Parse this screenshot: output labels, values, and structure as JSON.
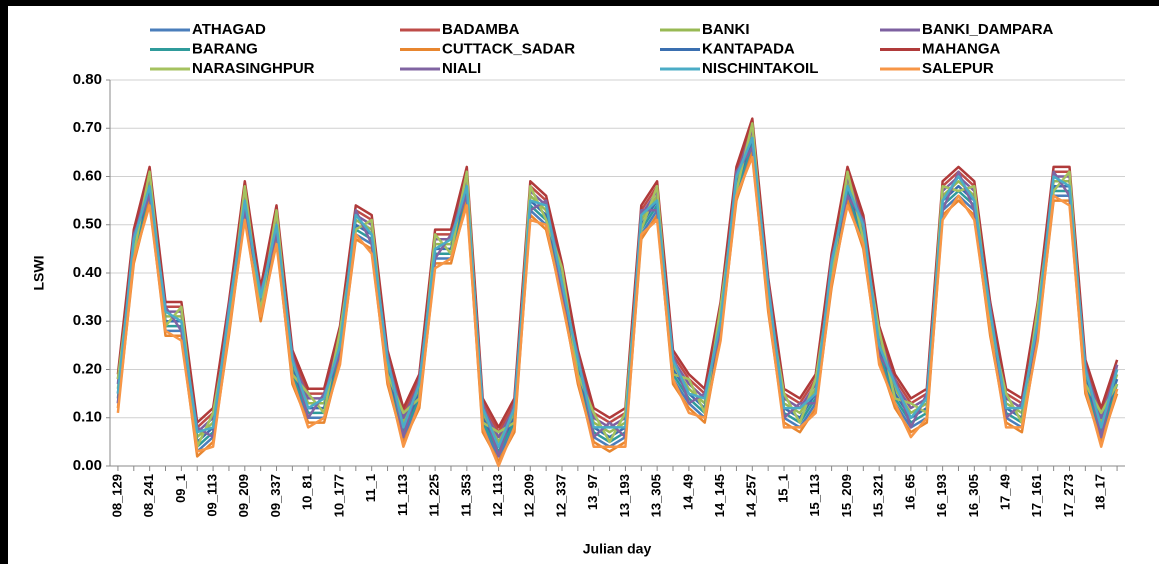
{
  "chart_data": {
    "type": "line",
    "ylabel": "LSWI",
    "xlabel": "Julian day",
    "categories": [
      "08_129",
      null,
      "08_241",
      null,
      "09_1",
      null,
      "09_113",
      null,
      "09_209",
      null,
      "09_337",
      null,
      "10_81",
      null,
      "10_177",
      null,
      "11_1",
      null,
      "11_113",
      null,
      "11_225",
      null,
      "11_353",
      null,
      "12_113",
      null,
      "12_209",
      null,
      "12_337",
      null,
      "13_97",
      null,
      "13_193",
      null,
      "13_305",
      null,
      "14_49",
      null,
      "14_145",
      null,
      "14_257",
      null,
      "15_1",
      null,
      "15_113",
      null,
      "15_209",
      null,
      "15_321",
      null,
      "16_65",
      null,
      "16_193",
      null,
      "16_305",
      null,
      "17_49",
      null,
      "17_161",
      null,
      "17_273",
      null,
      "18_17",
      null
    ],
    "ylim": [
      0,
      0.8
    ],
    "yticks": [
      {
        "value": 0,
        "label": "0.00"
      },
      {
        "value": 0.1,
        "label": "0.10"
      },
      {
        "value": 0.2,
        "label": "0.20"
      },
      {
        "value": 0.3,
        "label": "0.30"
      },
      {
        "value": 0.4,
        "label": "0.40"
      },
      {
        "value": 0.5,
        "label": "0.50"
      },
      {
        "value": 0.6,
        "label": "0.60"
      },
      {
        "value": 0.7,
        "label": "0.70"
      },
      {
        "value": 0.8,
        "label": "0.80"
      }
    ],
    "grid": true,
    "series": [
      {
        "name": "ATHAGAD",
        "color": "#4a7ebb",
        "values": [
          0.13,
          0.43,
          0.56,
          0.28,
          0.28,
          0.03,
          0.06,
          0.28,
          0.53,
          0.31,
          0.48,
          0.18,
          0.1,
          0.1,
          0.23,
          0.48,
          0.46,
          0.18,
          0.06,
          0.13,
          0.43,
          0.43,
          0.56,
          0.08,
          0.02,
          0.08,
          0.53,
          0.5,
          0.36,
          0.18,
          0.06,
          0.04,
          0.06,
          0.48,
          0.53,
          0.18,
          0.13,
          0.1,
          0.28,
          0.56,
          0.66,
          0.33,
          0.1,
          0.08,
          0.13,
          0.38,
          0.56,
          0.46,
          0.23,
          0.13,
          0.08,
          0.1,
          0.53,
          0.56,
          0.53,
          0.28,
          0.1,
          0.08,
          0.28,
          0.56,
          0.56,
          0.16,
          0.06,
          0.16
        ]
      },
      {
        "name": "BADAMBA",
        "color": "#be4b48",
        "values": [
          0.18,
          0.48,
          0.61,
          0.33,
          0.33,
          0.08,
          0.11,
          0.33,
          0.58,
          0.36,
          0.53,
          0.23,
          0.15,
          0.15,
          0.28,
          0.53,
          0.51,
          0.23,
          0.11,
          0.18,
          0.48,
          0.48,
          0.61,
          0.13,
          0.07,
          0.13,
          0.58,
          0.55,
          0.41,
          0.23,
          0.11,
          0.09,
          0.11,
          0.53,
          0.58,
          0.23,
          0.18,
          0.15,
          0.33,
          0.61,
          0.71,
          0.38,
          0.15,
          0.13,
          0.18,
          0.43,
          0.61,
          0.51,
          0.28,
          0.18,
          0.13,
          0.15,
          0.58,
          0.61,
          0.58,
          0.33,
          0.15,
          0.13,
          0.33,
          0.61,
          0.61,
          0.21,
          0.11,
          0.21
        ]
      },
      {
        "name": "BANKI",
        "color": "#98b954",
        "values": [
          0.16,
          0.46,
          0.59,
          0.31,
          0.31,
          0.06,
          0.09,
          0.31,
          0.56,
          0.34,
          0.51,
          0.21,
          0.13,
          0.13,
          0.26,
          0.51,
          0.49,
          0.21,
          0.09,
          0.16,
          0.46,
          0.46,
          0.59,
          0.11,
          0.05,
          0.11,
          0.56,
          0.53,
          0.39,
          0.21,
          0.09,
          0.07,
          0.09,
          0.51,
          0.56,
          0.21,
          0.16,
          0.13,
          0.31,
          0.59,
          0.69,
          0.36,
          0.13,
          0.11,
          0.16,
          0.41,
          0.59,
          0.49,
          0.26,
          0.16,
          0.11,
          0.13,
          0.56,
          0.59,
          0.56,
          0.31,
          0.13,
          0.11,
          0.31,
          0.59,
          0.59,
          0.19,
          0.09,
          0.19
        ]
      },
      {
        "name": "BANKI_DAMPARA",
        "color": "#7d60a0",
        "values": [
          0.17,
          0.47,
          0.6,
          0.32,
          0.32,
          0.07,
          0.1,
          0.32,
          0.57,
          0.35,
          0.52,
          0.22,
          0.14,
          0.14,
          0.27,
          0.52,
          0.5,
          0.22,
          0.1,
          0.17,
          0.47,
          0.47,
          0.6,
          0.12,
          0.06,
          0.12,
          0.57,
          0.54,
          0.4,
          0.22,
          0.1,
          0.08,
          0.1,
          0.52,
          0.57,
          0.22,
          0.17,
          0.14,
          0.32,
          0.6,
          0.7,
          0.37,
          0.14,
          0.12,
          0.17,
          0.42,
          0.6,
          0.5,
          0.27,
          0.17,
          0.12,
          0.14,
          0.57,
          0.6,
          0.57,
          0.32,
          0.14,
          0.12,
          0.32,
          0.6,
          0.6,
          0.2,
          0.1,
          0.2
        ]
      },
      {
        "name": "BARANG",
        "color": "#2f9b9b",
        "values": [
          0.14,
          0.44,
          0.57,
          0.29,
          0.29,
          0.04,
          0.07,
          0.29,
          0.54,
          0.32,
          0.49,
          0.19,
          0.11,
          0.11,
          0.24,
          0.49,
          0.47,
          0.19,
          0.07,
          0.14,
          0.44,
          0.44,
          0.57,
          0.09,
          0.03,
          0.09,
          0.54,
          0.51,
          0.37,
          0.19,
          0.07,
          0.05,
          0.07,
          0.49,
          0.54,
          0.19,
          0.14,
          0.11,
          0.29,
          0.57,
          0.67,
          0.34,
          0.11,
          0.09,
          0.14,
          0.39,
          0.57,
          0.47,
          0.24,
          0.14,
          0.09,
          0.11,
          0.54,
          0.57,
          0.54,
          0.29,
          0.11,
          0.09,
          0.29,
          0.57,
          0.57,
          0.17,
          0.07,
          0.17
        ]
      },
      {
        "name": "CUTTACK_SADAR",
        "color": "#e8862f",
        "values": [
          0.12,
          0.42,
          0.55,
          0.27,
          0.27,
          0.02,
          0.05,
          0.27,
          0.52,
          0.3,
          0.47,
          0.17,
          0.09,
          0.09,
          0.22,
          0.47,
          0.45,
          0.17,
          0.05,
          0.12,
          0.42,
          0.42,
          0.55,
          0.07,
          0.01,
          0.07,
          0.52,
          0.49,
          0.35,
          0.17,
          0.05,
          0.03,
          0.05,
          0.47,
          0.52,
          0.17,
          0.12,
          0.09,
          0.27,
          0.55,
          0.65,
          0.32,
          0.09,
          0.07,
          0.12,
          0.37,
          0.55,
          0.45,
          0.22,
          0.12,
          0.07,
          0.09,
          0.52,
          0.55,
          0.52,
          0.27,
          0.09,
          0.07,
          0.27,
          0.55,
          0.55,
          0.15,
          0.05,
          0.15
        ]
      },
      {
        "name": "KANTAPADA",
        "color": "#3a6fb0",
        "values": [
          0.15,
          0.45,
          0.58,
          0.3,
          0.3,
          0.05,
          0.08,
          0.3,
          0.55,
          0.33,
          0.5,
          0.2,
          0.12,
          0.12,
          0.25,
          0.5,
          0.48,
          0.2,
          0.08,
          0.15,
          0.45,
          0.45,
          0.58,
          0.1,
          0.04,
          0.1,
          0.55,
          0.52,
          0.38,
          0.2,
          0.08,
          0.06,
          0.08,
          0.5,
          0.55,
          0.2,
          0.15,
          0.12,
          0.3,
          0.58,
          0.68,
          0.35,
          0.12,
          0.1,
          0.15,
          0.4,
          0.58,
          0.48,
          0.25,
          0.15,
          0.1,
          0.12,
          0.55,
          0.58,
          0.55,
          0.3,
          0.12,
          0.1,
          0.3,
          0.58,
          0.58,
          0.18,
          0.08,
          0.18
        ]
      },
      {
        "name": "MAHANGA",
        "color": "#b03a3a",
        "values": [
          0.19,
          0.49,
          0.62,
          0.34,
          0.34,
          0.09,
          0.12,
          0.34,
          0.59,
          0.37,
          0.54,
          0.24,
          0.16,
          0.16,
          0.29,
          0.54,
          0.52,
          0.24,
          0.12,
          0.19,
          0.49,
          0.49,
          0.62,
          0.14,
          0.08,
          0.14,
          0.59,
          0.56,
          0.42,
          0.24,
          0.12,
          0.1,
          0.12,
          0.54,
          0.59,
          0.24,
          0.19,
          0.16,
          0.34,
          0.62,
          0.72,
          0.39,
          0.16,
          0.14,
          0.19,
          0.44,
          0.62,
          0.52,
          0.29,
          0.19,
          0.14,
          0.16,
          0.59,
          0.62,
          0.59,
          0.34,
          0.16,
          0.14,
          0.34,
          0.62,
          0.62,
          0.22,
          0.12,
          0.22
        ]
      },
      {
        "name": "NARASINGHPUR",
        "color": "#a5c25f",
        "values": [
          0.18,
          0.44,
          0.61,
          0.29,
          0.33,
          0.04,
          0.11,
          0.29,
          0.58,
          0.32,
          0.53,
          0.19,
          0.15,
          0.11,
          0.28,
          0.49,
          0.51,
          0.19,
          0.11,
          0.14,
          0.48,
          0.44,
          0.61,
          0.09,
          0.07,
          0.09,
          0.58,
          0.51,
          0.41,
          0.19,
          0.11,
          0.05,
          0.11,
          0.49,
          0.58,
          0.19,
          0.18,
          0.11,
          0.33,
          0.57,
          0.71,
          0.34,
          0.15,
          0.09,
          0.18,
          0.39,
          0.61,
          0.47,
          0.28,
          0.14,
          0.13,
          0.11,
          0.58,
          0.57,
          0.58,
          0.29,
          0.15,
          0.09,
          0.33,
          0.57,
          0.61,
          0.17,
          0.11,
          0.17
        ]
      },
      {
        "name": "NIALI",
        "color": "#8064a2",
        "values": [
          0.13,
          0.48,
          0.56,
          0.33,
          0.28,
          0.08,
          0.06,
          0.33,
          0.53,
          0.36,
          0.48,
          0.23,
          0.1,
          0.15,
          0.23,
          0.53,
          0.46,
          0.23,
          0.06,
          0.18,
          0.43,
          0.48,
          0.56,
          0.13,
          0.02,
          0.13,
          0.53,
          0.55,
          0.36,
          0.23,
          0.06,
          0.09,
          0.06,
          0.53,
          0.53,
          0.23,
          0.13,
          0.15,
          0.28,
          0.61,
          0.66,
          0.38,
          0.1,
          0.13,
          0.13,
          0.43,
          0.56,
          0.51,
          0.23,
          0.18,
          0.08,
          0.15,
          0.53,
          0.61,
          0.53,
          0.33,
          0.1,
          0.13,
          0.28,
          0.61,
          0.56,
          0.21,
          0.06,
          0.21
        ]
      },
      {
        "name": "NISCHINTAKOIL",
        "color": "#4bacc6",
        "values": [
          0.15,
          0.47,
          0.58,
          0.32,
          0.3,
          0.07,
          0.08,
          0.32,
          0.55,
          0.35,
          0.5,
          0.22,
          0.12,
          0.14,
          0.25,
          0.52,
          0.48,
          0.22,
          0.08,
          0.17,
          0.45,
          0.47,
          0.58,
          0.12,
          0.04,
          0.12,
          0.55,
          0.54,
          0.38,
          0.22,
          0.08,
          0.08,
          0.08,
          0.52,
          0.55,
          0.22,
          0.15,
          0.14,
          0.3,
          0.6,
          0.68,
          0.37,
          0.12,
          0.12,
          0.15,
          0.42,
          0.58,
          0.5,
          0.25,
          0.17,
          0.1,
          0.14,
          0.55,
          0.6,
          0.55,
          0.32,
          0.12,
          0.12,
          0.3,
          0.6,
          0.58,
          0.2,
          0.08,
          0.2
        ]
      },
      {
        "name": "SALEPUR",
        "color": "#f79646",
        "values": [
          0.11,
          0.43,
          0.54,
          0.28,
          0.26,
          0.03,
          0.04,
          0.28,
          0.51,
          0.31,
          0.46,
          0.18,
          0.08,
          0.1,
          0.21,
          0.48,
          0.44,
          0.18,
          0.04,
          0.13,
          0.41,
          0.43,
          0.54,
          0.08,
          0.0,
          0.08,
          0.51,
          0.5,
          0.34,
          0.18,
          0.04,
          0.04,
          0.04,
          0.48,
          0.51,
          0.18,
          0.11,
          0.1,
          0.26,
          0.56,
          0.64,
          0.33,
          0.08,
          0.08,
          0.11,
          0.38,
          0.54,
          0.46,
          0.21,
          0.13,
          0.06,
          0.1,
          0.51,
          0.56,
          0.51,
          0.28,
          0.08,
          0.08,
          0.26,
          0.56,
          0.54,
          0.16,
          0.04,
          0.16
        ]
      }
    ]
  }
}
